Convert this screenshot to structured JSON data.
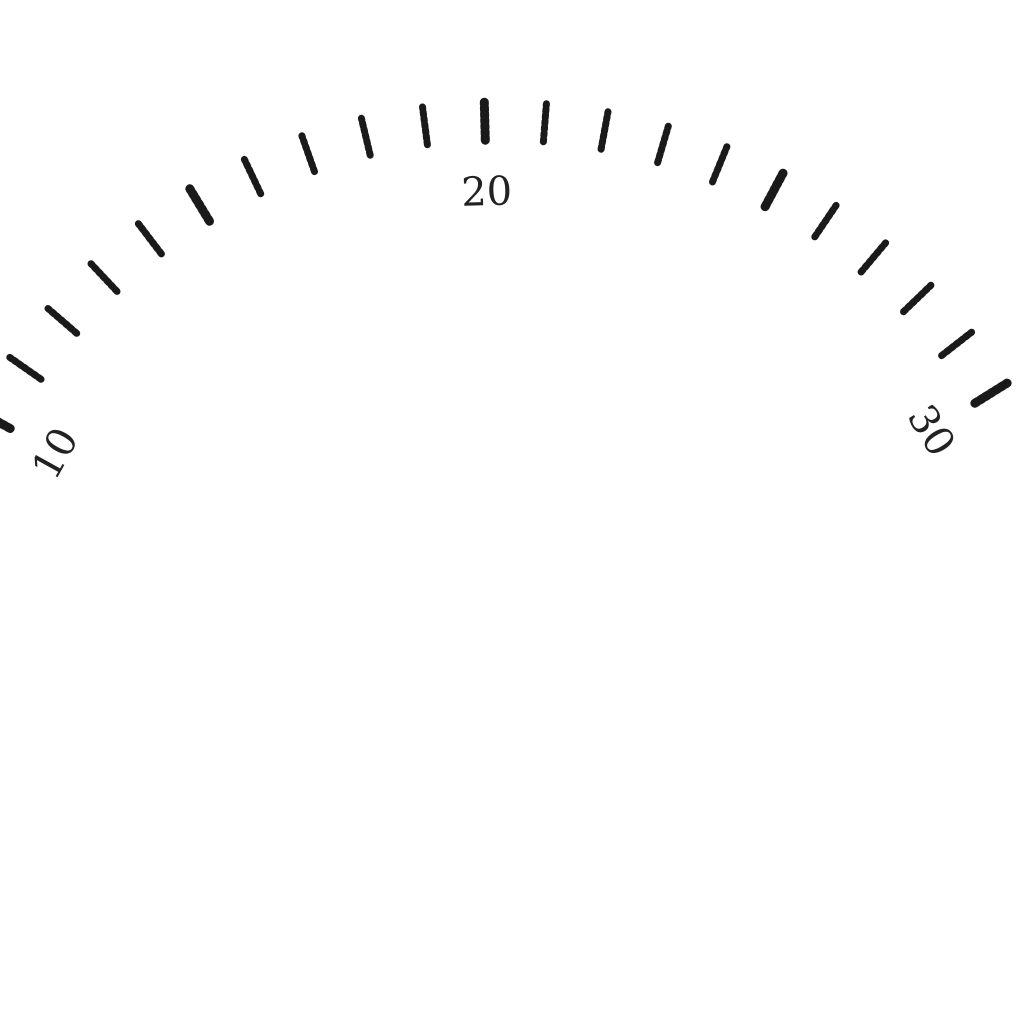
{
  "scale": {
    "min": 10,
    "max": 30,
    "labeled_values": [
      "10",
      "20",
      "30"
    ],
    "tick_color": "#1a1a1a",
    "label_color": "#222222"
  }
}
